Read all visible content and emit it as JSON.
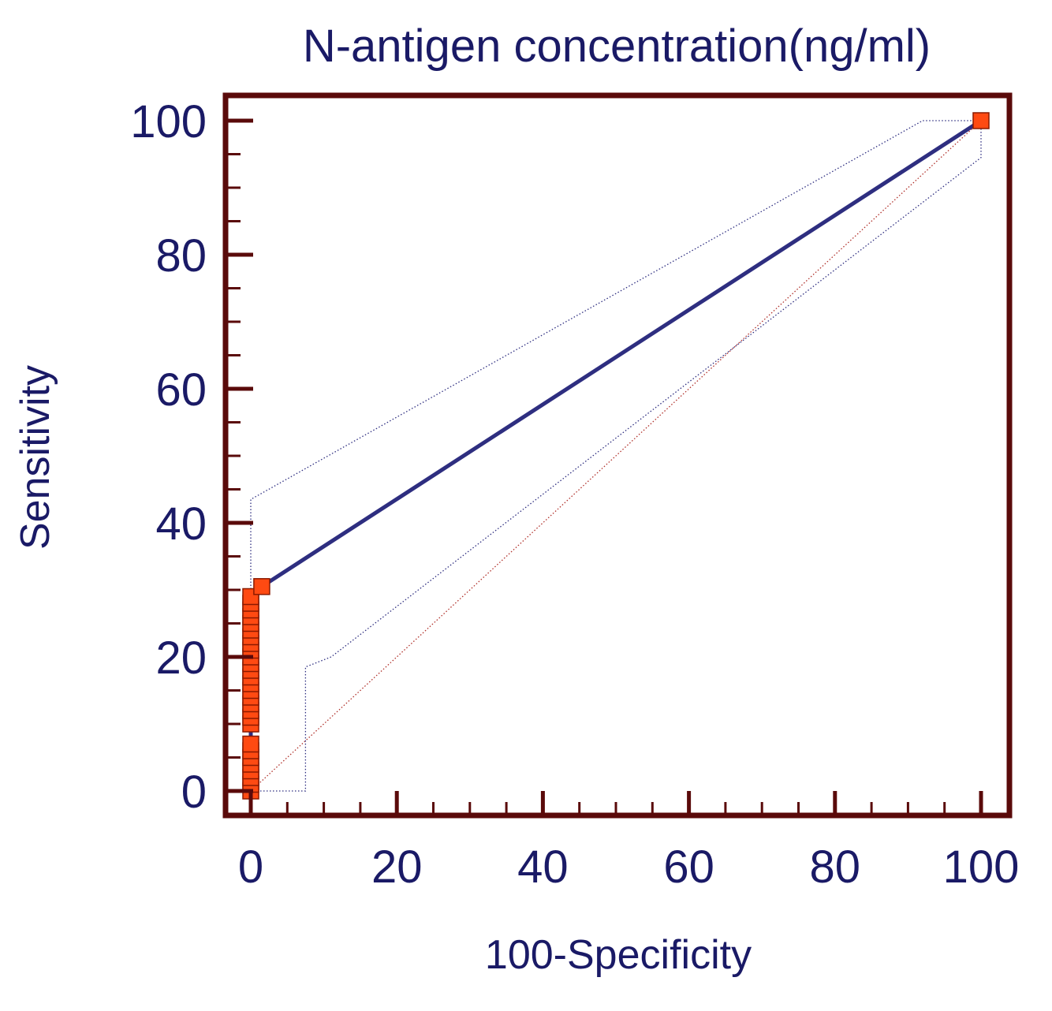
{
  "chart_data": {
    "type": "line",
    "title": "N-antigen  concentration(ng/ml)",
    "xlabel": "100-Specificity",
    "ylabel": "Sensitivity",
    "xlim": [
      0,
      100
    ],
    "ylim": [
      0,
      100
    ],
    "x_ticks": [
      "0",
      "20",
      "40",
      "60",
      "80",
      "100"
    ],
    "y_ticks": [
      "0",
      "20",
      "40",
      "60",
      "80",
      "100"
    ],
    "grid": false,
    "legend": "none",
    "colors": {
      "roc_line": "#2e2e80",
      "markers": "#ff4a12",
      "marker_edge": "#8a1a00",
      "frame": "#5a0a0a",
      "text": "#1a1a66",
      "ci_band": "#2e2e80",
      "diagonal": "#b0302a"
    },
    "series": [
      {
        "role": "roc-curve",
        "points": [
          [
            0,
            0
          ],
          [
            0,
            1
          ],
          [
            0,
            2
          ],
          [
            0,
            3
          ],
          [
            0,
            4
          ],
          [
            0,
            5
          ],
          [
            0,
            6
          ],
          [
            0,
            7
          ],
          [
            0,
            10
          ],
          [
            0,
            11
          ],
          [
            0,
            12
          ],
          [
            0,
            13
          ],
          [
            0,
            14
          ],
          [
            0,
            15
          ],
          [
            0,
            16
          ],
          [
            0,
            17
          ],
          [
            0,
            18
          ],
          [
            0,
            19
          ],
          [
            0,
            20
          ],
          [
            0,
            21
          ],
          [
            0,
            22
          ],
          [
            0,
            23
          ],
          [
            0,
            24
          ],
          [
            0,
            25
          ],
          [
            0,
            26
          ],
          [
            0,
            27
          ],
          [
            0,
            28
          ],
          [
            0,
            29
          ],
          [
            1.5,
            30.5
          ],
          [
            100,
            100
          ]
        ]
      },
      {
        "role": "ci-upper",
        "points": [
          [
            0,
            0
          ],
          [
            0,
            43.5
          ],
          [
            92,
            100
          ],
          [
            100,
            100
          ]
        ]
      },
      {
        "role": "ci-lower",
        "points": [
          [
            0,
            0
          ],
          [
            7.5,
            0
          ],
          [
            7.5,
            18.5
          ],
          [
            11,
            20
          ],
          [
            100,
            94.5
          ],
          [
            100,
            100
          ]
        ]
      },
      {
        "role": "reference-diagonal",
        "points": [
          [
            0,
            0
          ],
          [
            100,
            100
          ]
        ]
      }
    ]
  }
}
